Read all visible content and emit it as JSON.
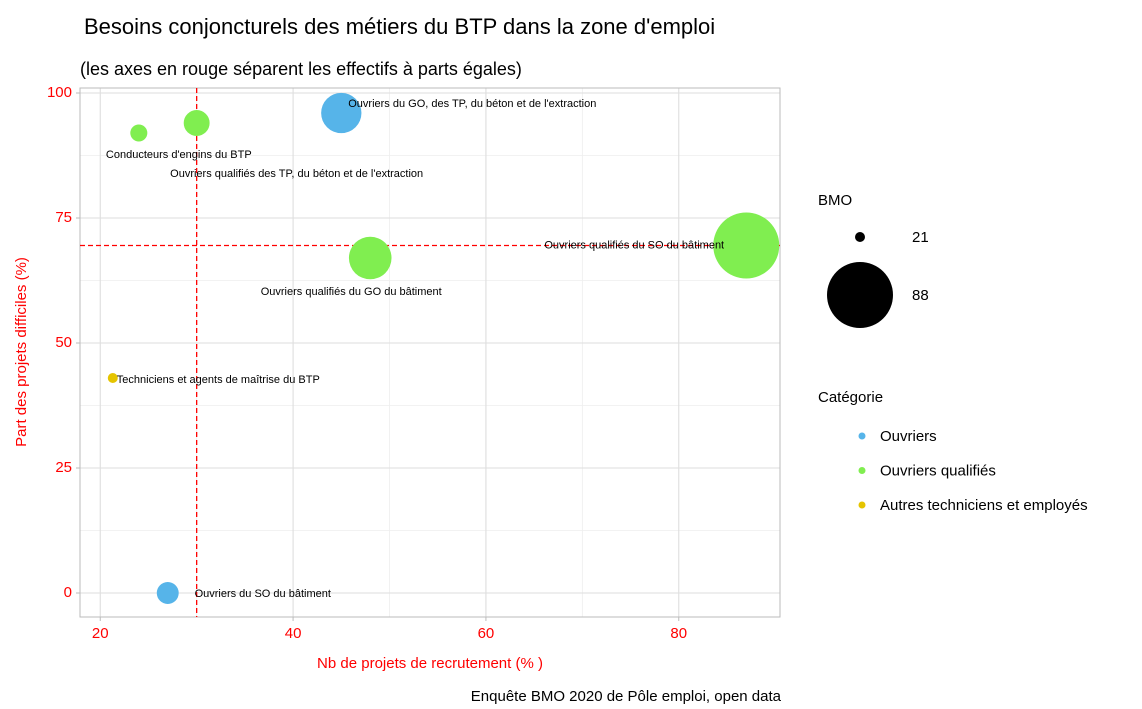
{
  "chart_data": {
    "type": "scatter",
    "title": "Besoins conjoncturels des métiers du BTP dans la zone d'emploi",
    "subtitle": "(les axes en rouge séparent les effectifs à parts égales)",
    "x_label": "Nb de projets de recrutement (% )",
    "y_label": "Part des projets difficiles (%)",
    "caption": "Enquête BMO 2020 de Pôle emploi, open data",
    "xlim": [
      17.9,
      90.5
    ],
    "xticks": [
      20,
      40,
      60,
      80
    ],
    "ylim": [
      -4.8,
      101
    ],
    "yticks": [
      0,
      25,
      50,
      75,
      100
    ],
    "grid": true,
    "reference_lines": {
      "x": 30,
      "y": 69.5,
      "color": "#ff0000"
    },
    "size_legend": {
      "title": "BMO",
      "values": [
        21,
        88
      ]
    },
    "color_legend_title": "Catégorie",
    "series": [
      {
        "name": "Ouvriers",
        "color": "#56b4e9",
        "x": [
          45,
          27
        ],
        "values": [
          96,
          0
        ],
        "sizes": [
          45,
          27
        ],
        "labels": [
          "Ouvriers du GO, des TP, du béton et de l'extraction",
          "Ouvriers du SO du bâtiment"
        ]
      },
      {
        "name": "Ouvriers qualifiés",
        "color": "#80ee50",
        "x": [
          24,
          30,
          87,
          48
        ],
        "values": [
          92,
          94,
          69.5,
          67
        ],
        "sizes": [
          24,
          30,
          88,
          48
        ],
        "labels": [
          "Conducteurs d'engins du BTP",
          "Ouvriers qualifiés des TP, du béton et de l'extraction",
          "Ouvriers qualifiés du SO du bâtiment",
          "Ouvriers qualifiés du GO du bâtiment"
        ]
      },
      {
        "name": "Autres techniciens et employés",
        "color": "#e5c400",
        "x": [
          21.3
        ],
        "values": [
          43
        ],
        "sizes": [
          21
        ],
        "labels": [
          "Techniciens et agents de maîtrise du BTP"
        ]
      }
    ]
  }
}
